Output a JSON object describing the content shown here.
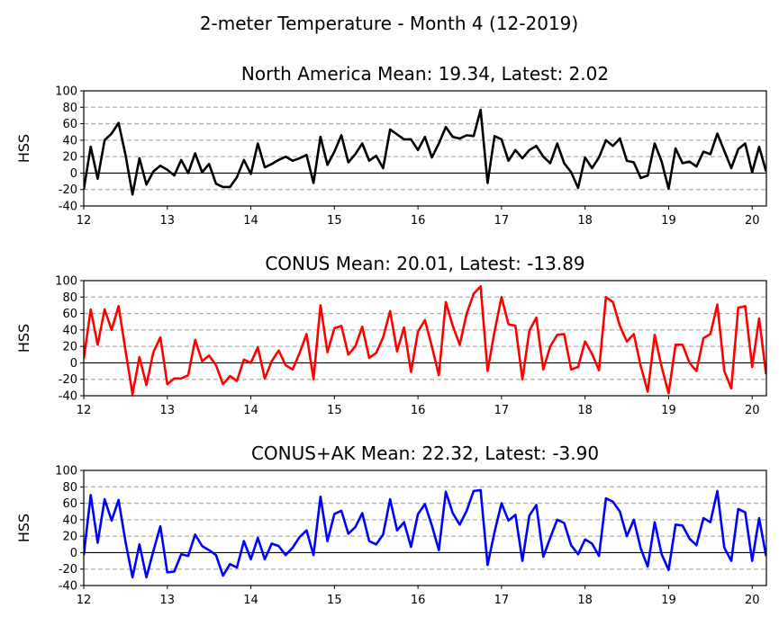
{
  "figure": {
    "suptitle": "2-meter Temperature - Month 4 (12-2019)"
  },
  "chart_data": [
    {
      "type": "line",
      "title": "North America Mean: 19.34, Latest: 2.02",
      "ylabel": "HSS",
      "xlim": [
        12,
        20.17
      ],
      "ylim": [
        -40,
        100
      ],
      "xticks": [
        12,
        13,
        14,
        15,
        16,
        17,
        18,
        19,
        20
      ],
      "yticks": [
        -40,
        -20,
        0,
        20,
        40,
        60,
        80,
        100
      ],
      "grid_dashed_at": [
        -20,
        20,
        40,
        60,
        80
      ],
      "zero_line": true,
      "series": [
        {
          "color": "#000000",
          "x_start": 12,
          "x_step": 0.08333,
          "values": [
            -20,
            32,
            -7,
            40,
            48,
            61,
            22,
            -26,
            18,
            -14,
            2,
            9,
            4,
            -3,
            16,
            0,
            24,
            1,
            11,
            -13,
            -17,
            -17,
            -5,
            16,
            -1,
            36,
            7,
            11,
            16,
            20,
            15,
            18,
            22,
            -12,
            44,
            10,
            26,
            46,
            13,
            23,
            36,
            15,
            21,
            6,
            53,
            47,
            41,
            41,
            28,
            44,
            19,
            36,
            56,
            44,
            42,
            46,
            45,
            77,
            -12,
            45,
            41,
            15,
            28,
            18,
            28,
            33,
            20,
            12,
            36,
            12,
            1,
            -18,
            19,
            6,
            19,
            40,
            33,
            42,
            15,
            13,
            -6,
            -3,
            36,
            14,
            -19,
            30,
            12,
            14,
            8,
            26,
            23,
            48,
            27,
            6,
            29,
            36,
            1,
            32,
            2
          ]
        }
      ]
    },
    {
      "type": "line",
      "title": "CONUS Mean: 20.01, Latest: -13.89",
      "ylabel": "HSS",
      "xlim": [
        12,
        20.17
      ],
      "ylim": [
        -40,
        100
      ],
      "xticks": [
        12,
        13,
        14,
        15,
        16,
        17,
        18,
        19,
        20
      ],
      "yticks": [
        -40,
        -20,
        0,
        20,
        40,
        60,
        80,
        100
      ],
      "grid_dashed_at": [
        -20,
        20,
        40,
        60,
        80
      ],
      "zero_line": true,
      "series": [
        {
          "color": "#ff0000",
          "x_start": 12,
          "x_step": 0.08333,
          "values": [
            5,
            65,
            22,
            65,
            40,
            69,
            15,
            -38,
            7,
            -27,
            13,
            31,
            -26,
            -19,
            -19,
            -15,
            28,
            2,
            9,
            -3,
            -26,
            -16,
            -22,
            4,
            0,
            19,
            -19,
            2,
            15,
            -3,
            -8,
            12,
            35,
            -20,
            70,
            13,
            42,
            45,
            10,
            20,
            44,
            6,
            12,
            31,
            63,
            14,
            43,
            -11,
            38,
            52,
            20,
            -15,
            74,
            45,
            22,
            60,
            84,
            93,
            -10,
            38,
            80,
            47,
            45,
            -20,
            39,
            55,
            -8,
            20,
            34,
            35,
            -8,
            -5,
            26,
            11,
            -9,
            80,
            74,
            45,
            26,
            35,
            -4,
            -35,
            34,
            -5,
            -37,
            22,
            22,
            0,
            -10,
            30,
            35,
            71,
            -10,
            -31,
            67,
            69,
            -5,
            54,
            -14
          ]
        }
      ]
    },
    {
      "type": "line",
      "title": "CONUS+AK Mean: 22.32, Latest: -3.90",
      "ylabel": "HSS",
      "xlim": [
        12,
        20.17
      ],
      "ylim": [
        -40,
        100
      ],
      "xticks": [
        12,
        13,
        14,
        15,
        16,
        17,
        18,
        19,
        20
      ],
      "yticks": [
        -40,
        -20,
        0,
        20,
        40,
        60,
        80,
        100
      ],
      "grid_dashed_at": [
        -20,
        20,
        40,
        60,
        80
      ],
      "zero_line": true,
      "series": [
        {
          "color": "#0000ff",
          "x_start": 12,
          "x_step": 0.08333,
          "values": [
            -3,
            70,
            12,
            65,
            39,
            64,
            13,
            -30,
            10,
            -30,
            2,
            32,
            -24,
            -23,
            -2,
            -4,
            22,
            8,
            3,
            -3,
            -28,
            -14,
            -18,
            14,
            -8,
            18,
            -8,
            11,
            8,
            -3,
            6,
            19,
            27,
            -3,
            68,
            14,
            47,
            51,
            23,
            31,
            48,
            14,
            10,
            22,
            65,
            27,
            37,
            7,
            47,
            59,
            33,
            3,
            74,
            48,
            34,
            51,
            75,
            76,
            -15,
            25,
            60,
            39,
            46,
            -10,
            45,
            58,
            -5,
            18,
            40,
            36,
            9,
            -2,
            16,
            11,
            -4,
            66,
            62,
            50,
            20,
            40,
            5,
            -17,
            37,
            -2,
            -21,
            34,
            33,
            17,
            9,
            42,
            37,
            75,
            6,
            -10,
            53,
            49,
            -10,
            42,
            -4
          ]
        }
      ]
    }
  ]
}
